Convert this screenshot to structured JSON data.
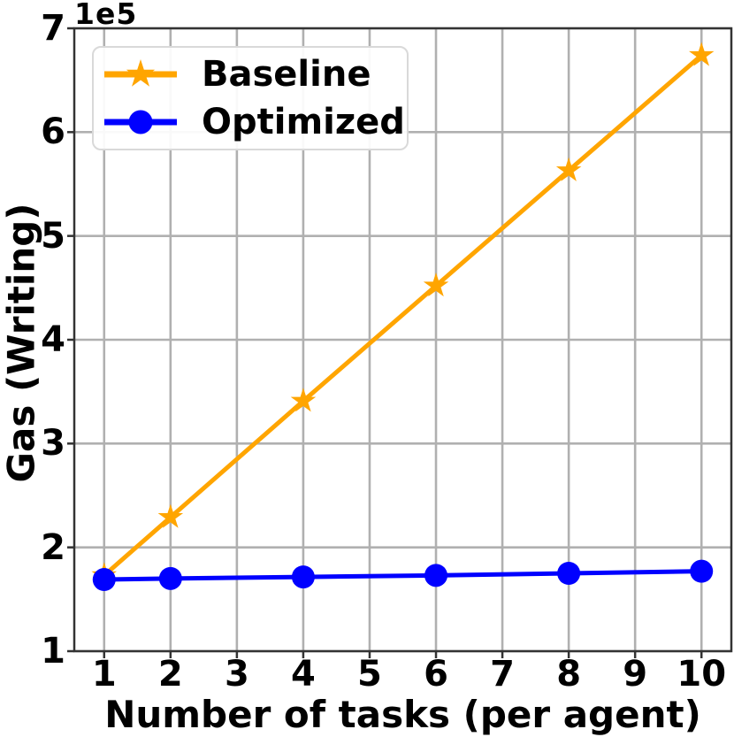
{
  "figure": {
    "background": "#ffffff",
    "grid_color": "#b0b0b0",
    "spine_color": "#333333",
    "tick_color": "#333333",
    "text_color": "#000000"
  },
  "chart_data": {
    "type": "line",
    "title": "",
    "xlabel": "Number of tasks (per agent)",
    "ylabel": "Gas (Writing)",
    "y_offset_label": "1e5",
    "y_multiplier": 100000,
    "x": [
      1,
      2,
      4,
      6,
      8,
      10
    ],
    "series": [
      {
        "name": "Baseline",
        "color": "#FFA500",
        "marker": "star",
        "values": [
          173000,
          229000,
          341000,
          452000,
          563000,
          674000
        ]
      },
      {
        "name": "Optimized",
        "color": "#0000FF",
        "marker": "circle",
        "values": [
          169000,
          170000,
          171500,
          173000,
          175000,
          177000
        ]
      }
    ],
    "xlim": [
      0.55,
      10.45
    ],
    "ylim": [
      100000,
      700000
    ],
    "x_ticks": [
      1,
      2,
      3,
      4,
      5,
      6,
      7,
      8,
      9,
      10
    ],
    "y_ticks": [
      100000,
      200000,
      300000,
      400000,
      500000,
      600000,
      700000
    ],
    "grid": true,
    "legend_position": "upper left"
  }
}
